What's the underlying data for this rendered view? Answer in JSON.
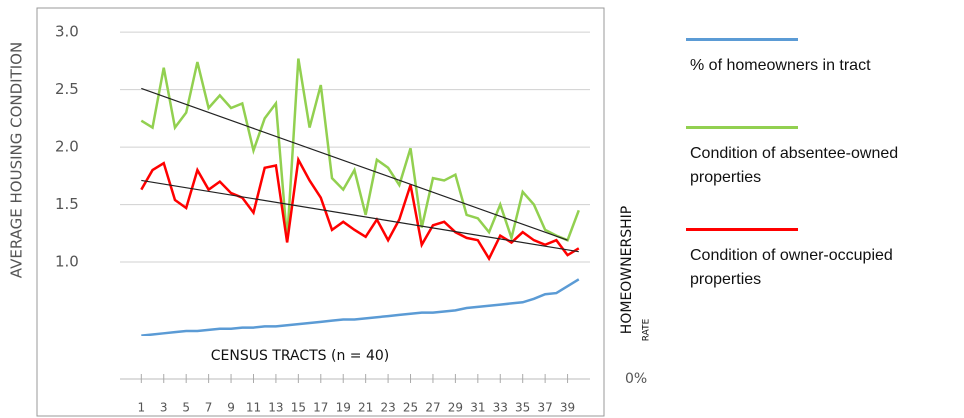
{
  "chart_data": {
    "type": "line",
    "y_label": "AVERAGE HOUSING CONDITION",
    "x_label": "CENSUS TRACTS (n = 40)",
    "y2_label": "HOMEOWNERSHIP",
    "y2_label_sub": "RATE",
    "x": [
      1,
      2,
      3,
      4,
      5,
      6,
      7,
      8,
      9,
      10,
      11,
      12,
      13,
      14,
      15,
      16,
      17,
      18,
      19,
      20,
      21,
      22,
      23,
      24,
      25,
      26,
      27,
      28,
      29,
      30,
      31,
      32,
      33,
      34,
      35,
      36,
      37,
      38,
      39,
      40
    ],
    "xlim": [
      -0.9,
      41
    ],
    "xticks": [
      1,
      3,
      5,
      7,
      9,
      11,
      13,
      15,
      17,
      19,
      21,
      23,
      25,
      27,
      29,
      31,
      33,
      35,
      37,
      39
    ],
    "ylim": [
      0,
      3.21
    ],
    "yticks": [
      {
        "value": 1,
        "label": "1.0"
      },
      1.5,
      {
        "value": 2,
        "label": "2.0"
      },
      2.5,
      {
        "value": 3,
        "label": "3.0"
      }
    ],
    "y2lim": [
      0,
      3.21
    ],
    "y2ticks": [
      {
        "value": 0,
        "label": "0%"
      }
    ],
    "grid": true,
    "series": [
      {
        "name": "% of homeowners in tract",
        "color": "#5b9bd5",
        "axis": "y2",
        "values": [
          0.36,
          0.37,
          0.38,
          0.39,
          0.4,
          0.4,
          0.41,
          0.42,
          0.42,
          0.43,
          0.43,
          0.44,
          0.44,
          0.45,
          0.46,
          0.47,
          0.48,
          0.49,
          0.5,
          0.5,
          0.51,
          0.52,
          0.53,
          0.54,
          0.55,
          0.56,
          0.56,
          0.57,
          0.58,
          0.6,
          0.61,
          0.62,
          0.63,
          0.64,
          0.65,
          0.68,
          0.72,
          0.73,
          0.79,
          0.85
        ]
      },
      {
        "name": "Condition of absentee-owned properties",
        "color": "#92d050",
        "values": [
          2.23,
          2.17,
          2.69,
          2.17,
          2.3,
          2.74,
          2.34,
          2.45,
          2.34,
          2.38,
          1.97,
          2.25,
          2.38,
          1.19,
          2.77,
          2.17,
          2.54,
          1.73,
          1.63,
          1.8,
          1.41,
          1.89,
          1.82,
          1.67,
          1.99,
          1.3,
          1.73,
          1.71,
          1.76,
          1.41,
          1.38,
          1.26,
          1.5,
          1.21,
          1.61,
          1.5,
          1.28,
          1.23,
          1.19,
          1.45
        ]
      },
      {
        "name": "Condition of owner-occupied properties",
        "color": "#ff0000",
        "values": [
          1.63,
          1.8,
          1.86,
          1.54,
          1.47,
          1.8,
          1.63,
          1.7,
          1.6,
          1.56,
          1.43,
          1.82,
          1.84,
          1.17,
          1.89,
          1.71,
          1.56,
          1.28,
          1.35,
          1.28,
          1.22,
          1.37,
          1.19,
          1.37,
          1.67,
          1.15,
          1.32,
          1.35,
          1.26,
          1.21,
          1.19,
          1.03,
          1.23,
          1.17,
          1.26,
          1.19,
          1.15,
          1.19,
          1.06,
          1.12
        ]
      }
    ],
    "trendlines": [
      {
        "color": "#222222",
        "x": [
          1,
          39
        ],
        "values": [
          2.51,
          1.19
        ]
      },
      {
        "color": "#222222",
        "x": [
          1,
          40
        ],
        "values": [
          1.71,
          1.09
        ]
      }
    ]
  }
}
